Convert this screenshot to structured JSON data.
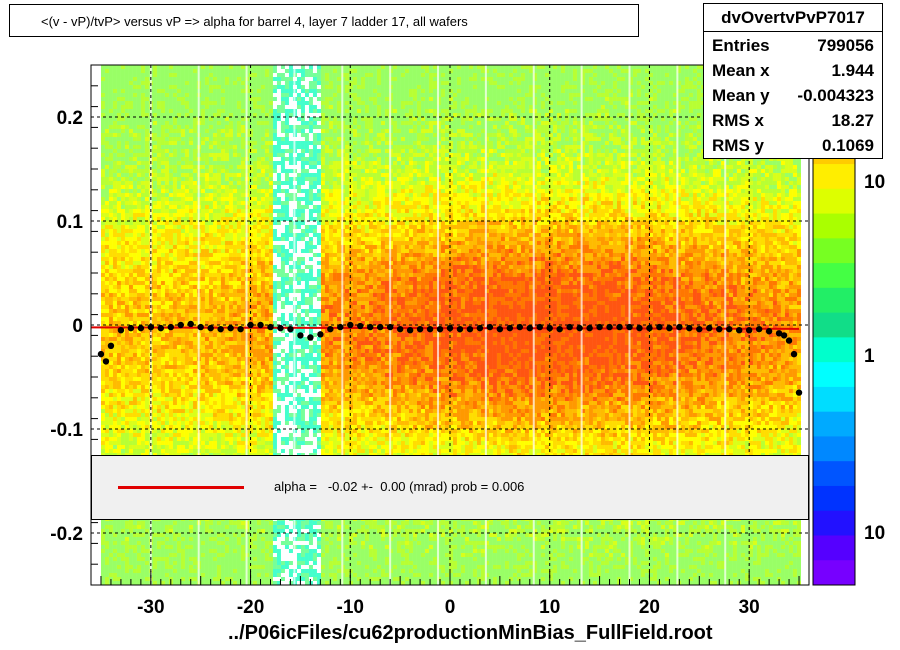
{
  "title": "<(v - vP)/tvP>  versus   vP => alpha for barrel 4, layer 7 ladder 17, all wafers",
  "stats": {
    "name": "dvOvertvPvP7017",
    "rows": [
      {
        "label": "Entries",
        "value": "799056"
      },
      {
        "label": "Mean x",
        "value": "1.944"
      },
      {
        "label": "Mean y",
        "value": "-0.004323"
      },
      {
        "label": "RMS x",
        "value": "18.27"
      },
      {
        "label": "RMS y",
        "value": "0.1069"
      }
    ]
  },
  "legend": {
    "text": "alpha =   -0.02 +-  0.00 (mrad) prob = 0.006"
  },
  "footer": "../P06icFiles/cu62productionMinBias_FullField.root",
  "colors": {
    "fit_line": "#e00000",
    "points": "#000000",
    "legend_bg": "#f0f0f0"
  },
  "chart_data": {
    "type": "heatmap",
    "title": "<(v - vP)/tvP>  versus   vP => alpha for barrel 4, layer 7 ladder 17, all wafers",
    "xlabel": "",
    "ylabel": "",
    "xlim": [
      -36,
      36
    ],
    "ylim": [
      -0.25,
      0.25
    ],
    "x_ticks": [
      -30,
      -20,
      -10,
      0,
      10,
      20,
      30
    ],
    "x_tick_labels": [
      "-30",
      "-20",
      "-10",
      "0",
      "10",
      "20",
      "30"
    ],
    "y_ticks": [
      -0.2,
      -0.1,
      0,
      0.1,
      0.2
    ],
    "y_tick_labels": [
      "-0.2",
      "-0.1",
      "0",
      "0.1",
      "0.2"
    ],
    "grid": true,
    "colorbar": {
      "scale": "log",
      "tick_labels": [
        "10",
        "1",
        "10"
      ]
    },
    "fit": {
      "slope_mrad": -0.02,
      "intercept": -0.003,
      "x_range": [
        -36,
        35
      ]
    },
    "profile": {
      "x": [
        -35,
        -34.5,
        -34,
        -33,
        -32,
        -31,
        -30,
        -29,
        -28,
        -27,
        -26,
        -25,
        -24,
        -23,
        -22,
        -21,
        -20,
        -19,
        -18,
        -17,
        -16,
        -15,
        -14,
        -13,
        -12,
        -11,
        -10,
        -9,
        -8,
        -7,
        -6,
        -5,
        -4,
        -3,
        -2,
        -1,
        0,
        1,
        2,
        3,
        4,
        5,
        6,
        7,
        8,
        9,
        10,
        11,
        12,
        13,
        14,
        15,
        16,
        17,
        18,
        19,
        20,
        21,
        22,
        23,
        24,
        25,
        26,
        27,
        28,
        29,
        30,
        31,
        32,
        33,
        33.5,
        34,
        34.5,
        35
      ],
      "y": [
        -0.028,
        -0.035,
        -0.02,
        -0.005,
        -0.003,
        -0.003,
        -0.002,
        -0.003,
        -0.002,
        0.0,
        0.001,
        -0.002,
        -0.003,
        -0.004,
        -0.003,
        -0.004,
        0.0,
        0.0,
        -0.002,
        -0.003,
        -0.004,
        -0.01,
        -0.012,
        -0.009,
        -0.004,
        -0.002,
        0.0,
        -0.001,
        -0.002,
        -0.002,
        -0.002,
        -0.004,
        -0.005,
        -0.004,
        -0.004,
        -0.004,
        -0.003,
        -0.004,
        -0.004,
        -0.003,
        -0.002,
        -0.004,
        -0.003,
        -0.002,
        -0.003,
        -0.002,
        -0.003,
        -0.004,
        -0.002,
        -0.003,
        -0.003,
        -0.002,
        -0.002,
        -0.002,
        -0.002,
        -0.003,
        -0.003,
        -0.002,
        -0.003,
        -0.002,
        -0.003,
        -0.004,
        -0.003,
        -0.004,
        -0.004,
        -0.005,
        -0.005,
        -0.004,
        -0.006,
        -0.008,
        -0.01,
        -0.015,
        -0.028,
        -0.065
      ]
    }
  }
}
